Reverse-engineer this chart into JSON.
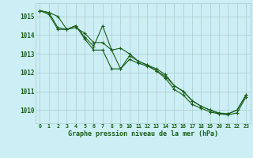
{
  "title": "Graphe pression niveau de la mer (hPa)",
  "background_color": "#cceef5",
  "line_color": "#1a5e1a",
  "grid_color": "#aacccc",
  "tick_color": "#1a5e1a",
  "xlim": [
    -0.5,
    23.5
  ],
  "ylim": [
    1009.3,
    1015.7
  ],
  "yticks": [
    1010,
    1011,
    1012,
    1013,
    1014,
    1015
  ],
  "xticks": [
    0,
    1,
    2,
    3,
    4,
    5,
    6,
    7,
    8,
    9,
    10,
    11,
    12,
    13,
    14,
    15,
    16,
    17,
    18,
    19,
    20,
    21,
    22,
    23
  ],
  "line1_x": [
    0,
    1,
    2,
    3,
    4,
    5,
    6,
    7,
    8,
    9,
    10,
    11,
    12,
    13,
    14,
    15,
    16,
    17,
    18,
    19,
    20,
    21,
    22,
    23
  ],
  "line1_y": [
    1015.3,
    1015.2,
    1015.0,
    1014.3,
    1014.4,
    1014.1,
    1013.6,
    1013.6,
    1013.2,
    1012.2,
    1012.7,
    1012.5,
    1012.35,
    1012.1,
    1011.8,
    1011.3,
    1011.0,
    1010.5,
    1010.2,
    1010.0,
    1009.8,
    1009.8,
    1010.0,
    1010.8
  ],
  "line2_x": [
    0,
    1,
    2,
    3,
    4,
    5,
    6,
    7,
    8,
    9,
    10,
    11,
    12,
    13,
    14,
    15,
    16,
    17,
    18,
    19,
    20,
    21,
    22,
    23
  ],
  "line2_y": [
    1015.3,
    1015.2,
    1014.4,
    1014.3,
    1014.5,
    1013.9,
    1013.4,
    1014.5,
    1013.2,
    1013.3,
    1013.0,
    1012.6,
    1012.4,
    1012.2,
    1011.9,
    1011.3,
    1011.0,
    1010.5,
    1010.2,
    1010.0,
    1009.85,
    1009.8,
    1010.0,
    1010.8
  ],
  "line3_x": [
    0,
    1,
    2,
    3,
    4,
    5,
    6,
    7,
    8,
    9,
    10,
    11,
    12,
    13,
    14,
    15,
    16,
    17,
    18,
    19,
    20,
    21,
    22,
    23
  ],
  "line3_y": [
    1015.3,
    1015.1,
    1014.3,
    1014.3,
    1014.5,
    1013.8,
    1013.2,
    1013.2,
    1012.2,
    1012.2,
    1012.9,
    1012.6,
    1012.4,
    1012.1,
    1011.7,
    1011.1,
    1010.8,
    1010.3,
    1010.1,
    1009.9,
    1009.8,
    1009.75,
    1009.85,
    1010.7
  ]
}
